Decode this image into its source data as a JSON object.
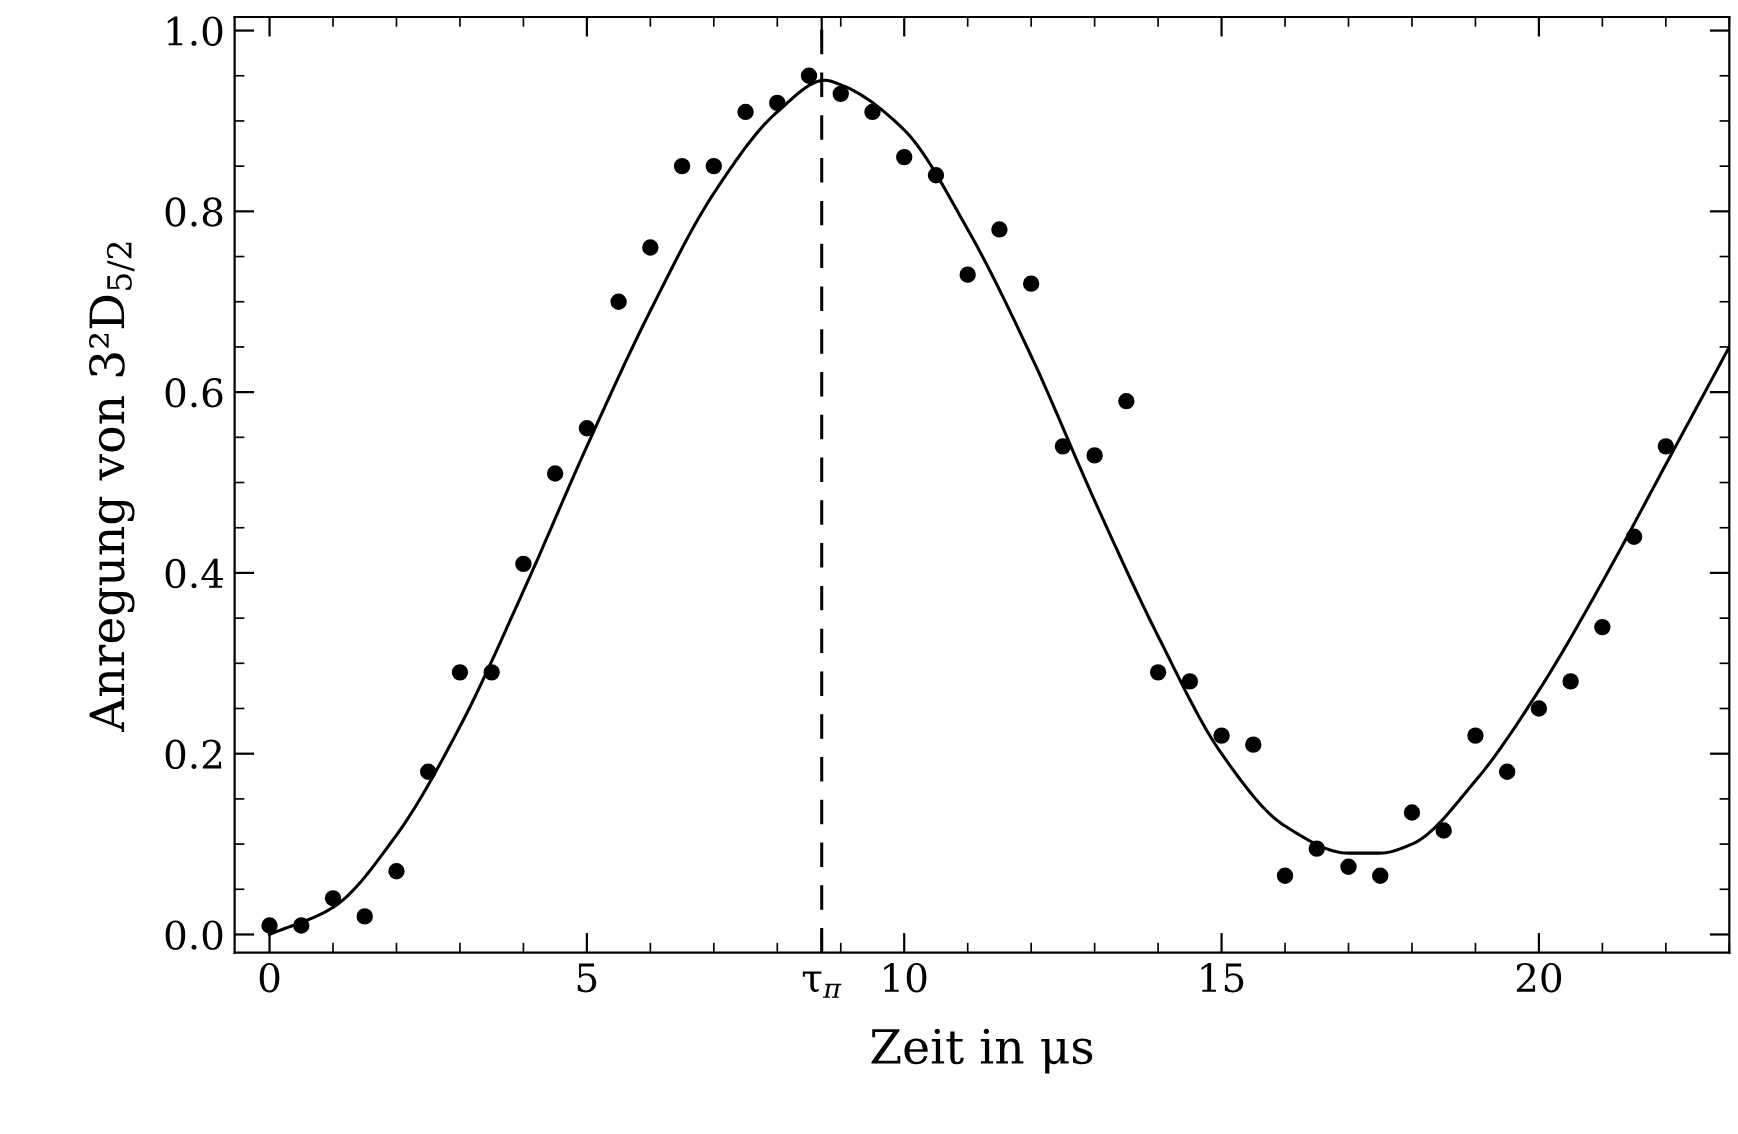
{
  "chart_data": {
    "type": "scatter",
    "xlabel": "Zeit in μs",
    "ylabel": "Anregung von 3²D$_{5/2}$",
    "xlim": [
      -0.55,
      23
    ],
    "ylim": [
      -0.02,
      1.015
    ],
    "xticks": [
      0,
      5,
      {
        "value": 8.7,
        "label": "τ$_{π}$"
      },
      10,
      15,
      20
    ],
    "yticks": [
      {
        "value": 0,
        "label": "0.0"
      },
      {
        "value": 0.2,
        "label": "0.2"
      },
      {
        "value": 0.4,
        "label": "0.4"
      },
      {
        "value": 0.6,
        "label": "0.6"
      },
      {
        "value": 0.8,
        "label": "0.8"
      },
      {
        "value": 1.0,
        "label": "1.0"
      }
    ],
    "grid": false,
    "legend": false,
    "ref_lines": [
      {
        "axis": "x",
        "value": 8.7,
        "color": "#000000",
        "line_style": "dashed"
      }
    ],
    "series": [
      {
        "color": "#000000",
        "marker": "circle",
        "x": [
          0,
          0.5,
          1,
          1.5,
          2,
          2.5,
          3,
          3.5,
          4,
          4.5,
          5,
          5.5,
          6,
          6.5,
          7,
          7.5,
          8,
          8.5,
          9,
          9.5,
          10,
          10.5,
          11,
          11.5,
          12,
          12.5,
          13,
          13.5,
          14,
          14.5,
          15,
          15.5,
          16,
          16.5,
          17,
          17.5,
          18,
          18.5,
          19,
          19.5,
          20,
          20.5,
          21,
          21.5,
          22
        ],
        "values": [
          0.01,
          0.01,
          0.04,
          0.02,
          0.07,
          0.18,
          0.29,
          0.29,
          0.41,
          0.51,
          0.56,
          0.7,
          0.76,
          0.85,
          0.85,
          0.91,
          0.92,
          0.95,
          0.93,
          0.91,
          0.86,
          0.84,
          0.73,
          0.78,
          0.72,
          0.54,
          0.53,
          0.59,
          0.29,
          0.28,
          0.22,
          0.21,
          0.065,
          0.095,
          0.075,
          0.065,
          0.135,
          0.115,
          0.22,
          0.18,
          0.25,
          0.28,
          0.34,
          0.44,
          0.54
        ]
      },
      {
        "type": "line",
        "color": "#000000",
        "marker": "none",
        "line_style": "solid",
        "x": [
          0,
          1,
          2,
          3,
          4,
          5,
          6,
          7,
          8,
          8.75,
          9,
          10,
          11,
          12,
          13,
          14,
          15,
          16,
          17,
          17.5,
          18,
          19,
          20,
          21,
          22,
          23
        ],
        "values": [
          0.0,
          0.03,
          0.11,
          0.23,
          0.38,
          0.54,
          0.69,
          0.82,
          0.91,
          0.945,
          0.94,
          0.89,
          0.78,
          0.64,
          0.48,
          0.33,
          0.2,
          0.12,
          0.09,
          0.09,
          0.1,
          0.17,
          0.27,
          0.39,
          0.52,
          0.65
        ]
      }
    ]
  }
}
